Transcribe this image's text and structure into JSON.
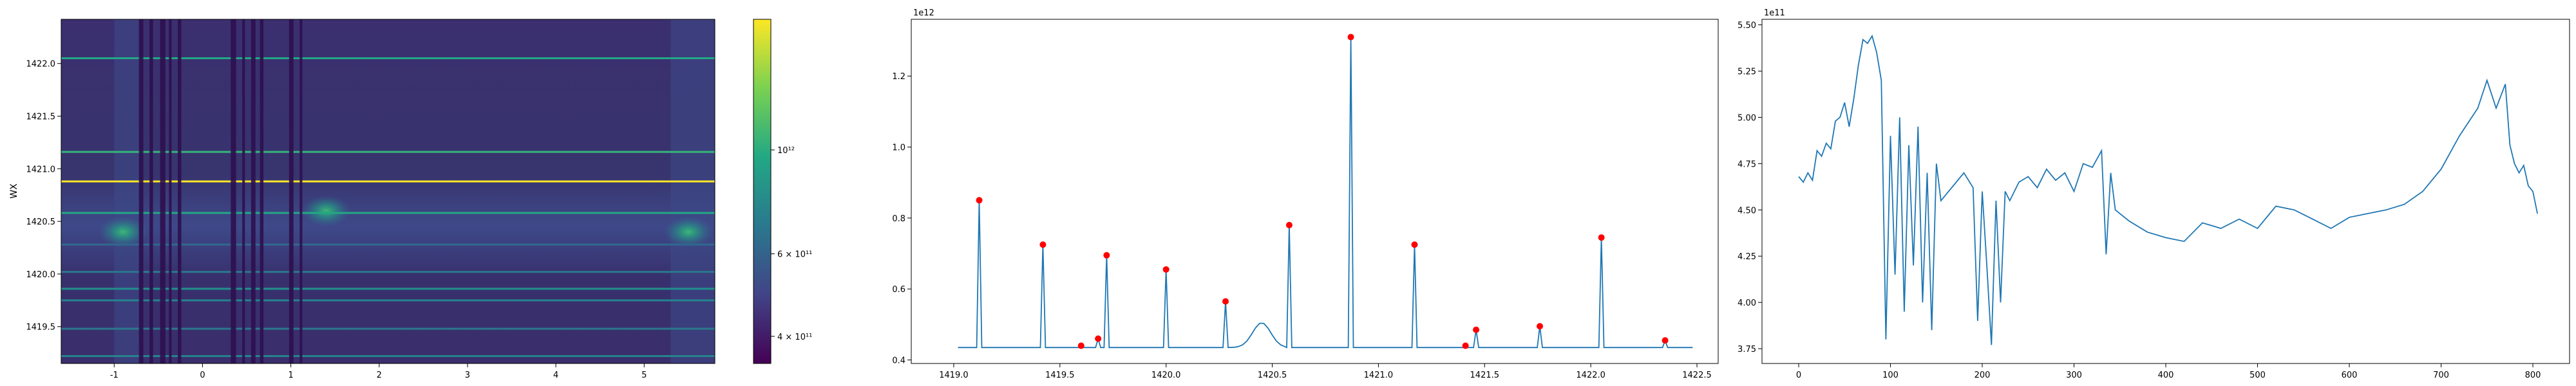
{
  "chart_data": [
    {
      "type": "heatmap",
      "xlim": [
        -1.6,
        5.8
      ],
      "ylim": [
        1419.15,
        1422.42
      ],
      "ylabel": "WX",
      "xticks": [
        -1,
        0,
        1,
        2,
        3,
        4,
        5
      ],
      "yticks": [
        1419.5,
        1420.0,
        1420.5,
        1421.0,
        1421.5,
        1422.0
      ],
      "colorscale": "viridis",
      "colorbar": {
        "scale": "log",
        "ticks": [
          "4 × 10¹¹",
          "6 × 10¹¹",
          "10¹²"
        ],
        "tick_values": [
          400000000000.0,
          600000000000.0,
          1000000000000.0
        ],
        "range": [
          350000000000.0,
          1900000000000.0
        ]
      },
      "horizontal_lines": [
        {
          "y": 1419.22,
          "color": "#25838e"
        },
        {
          "y": 1419.48,
          "color": "#2a788e"
        },
        {
          "y": 1419.75,
          "color": "#25838e"
        },
        {
          "y": 1419.86,
          "color": "#21908d"
        },
        {
          "y": 1420.02,
          "color": "#2a788e"
        },
        {
          "y": 1420.28,
          "color": "#31688e"
        },
        {
          "y": 1420.58,
          "color": "#22a884"
        },
        {
          "y": 1420.88,
          "color": "#fde725"
        },
        {
          "y": 1421.16,
          "color": "#35b779"
        },
        {
          "y": 1422.05,
          "color": "#22a884"
        }
      ],
      "vertical_bands": [
        {
          "x": -0.72,
          "w": 0.05
        },
        {
          "x": -0.6,
          "w": 0.04
        },
        {
          "x": -0.48,
          "w": 0.06
        },
        {
          "x": -0.38,
          "w": 0.03
        },
        {
          "x": -0.28,
          "w": 0.04
        },
        {
          "x": 0.32,
          "w": 0.06
        },
        {
          "x": 0.45,
          "w": 0.03
        },
        {
          "x": 0.55,
          "w": 0.05
        },
        {
          "x": 0.65,
          "w": 0.04
        },
        {
          "x": 0.98,
          "w": 0.05
        },
        {
          "x": 1.1,
          "w": 0.03
        }
      ],
      "hotspots": [
        {
          "x": -0.9,
          "y": 1420.4,
          "label": "bright band"
        },
        {
          "x": 1.4,
          "y": 1420.6,
          "label": "bright band"
        },
        {
          "x": 5.5,
          "y": 1420.4,
          "label": "bright band"
        }
      ]
    },
    {
      "type": "line",
      "offset_label": "1e12",
      "xlim": [
        1418.8,
        1422.6
      ],
      "ylim": [
        0.39,
        1.36
      ],
      "xticks": [
        1419.0,
        1419.5,
        1420.0,
        1420.5,
        1421.0,
        1421.5,
        1422.0,
        1422.5
      ],
      "yticks": [
        0.4,
        0.6,
        0.8,
        1.0,
        1.2
      ],
      "line_color": "#1f77b4",
      "baseline": 0.435,
      "peaks": [
        {
          "x": 1419.12,
          "y": 0.85
        },
        {
          "x": 1419.42,
          "y": 0.725
        },
        {
          "x": 1419.6,
          "y": 0.44
        },
        {
          "x": 1419.68,
          "y": 0.46
        },
        {
          "x": 1419.72,
          "y": 0.695
        },
        {
          "x": 1420.0,
          "y": 0.655
        },
        {
          "x": 1420.28,
          "y": 0.565
        },
        {
          "x": 1420.58,
          "y": 0.78
        },
        {
          "x": 1420.87,
          "y": 1.31
        },
        {
          "x": 1421.17,
          "y": 0.725
        },
        {
          "x": 1421.41,
          "y": 0.44
        },
        {
          "x": 1421.46,
          "y": 0.485
        },
        {
          "x": 1421.76,
          "y": 0.495
        },
        {
          "x": 1422.05,
          "y": 0.745
        },
        {
          "x": 1422.35,
          "y": 0.455
        }
      ],
      "marker_color": "#ff0000"
    },
    {
      "type": "line",
      "offset_label": "1e11",
      "xlim": [
        -40,
        840
      ],
      "ylim": [
        3.67,
        5.53
      ],
      "xticks": [
        0,
        100,
        200,
        300,
        400,
        500,
        600,
        700,
        800
      ],
      "yticks": [
        3.75,
        4.0,
        4.25,
        4.5,
        4.75,
        5.0,
        5.25,
        5.5
      ],
      "line_color": "#1f77b4",
      "series": {
        "x": [
          0,
          5,
          10,
          15,
          20,
          25,
          30,
          35,
          40,
          45,
          50,
          55,
          60,
          65,
          70,
          75,
          80,
          85,
          90,
          95,
          100,
          105,
          110,
          115,
          120,
          125,
          130,
          135,
          140,
          145,
          150,
          155,
          160,
          170,
          180,
          190,
          195,
          200,
          205,
          210,
          215,
          220,
          225,
          230,
          240,
          250,
          260,
          270,
          280,
          290,
          300,
          310,
          320,
          330,
          335,
          340,
          345,
          360,
          380,
          400,
          420,
          440,
          460,
          480,
          500,
          520,
          540,
          560,
          580,
          600,
          620,
          640,
          660,
          680,
          700,
          720,
          740,
          750,
          760,
          770,
          775,
          780,
          785,
          790,
          795,
          800,
          805
        ],
        "y": [
          4.68,
          4.65,
          4.7,
          4.66,
          4.82,
          4.79,
          4.86,
          4.83,
          4.98,
          5.0,
          5.08,
          4.95,
          5.1,
          5.28,
          5.42,
          5.4,
          5.44,
          5.35,
          5.2,
          3.8,
          4.9,
          4.15,
          5.0,
          3.95,
          4.85,
          4.2,
          4.95,
          4.0,
          4.7,
          3.85,
          4.75,
          4.55,
          4.58,
          4.64,
          4.7,
          4.62,
          3.9,
          4.6,
          4.2,
          3.77,
          4.55,
          4.0,
          4.6,
          4.55,
          4.65,
          4.68,
          4.62,
          4.72,
          4.66,
          4.7,
          4.6,
          4.75,
          4.73,
          4.82,
          4.26,
          4.7,
          4.5,
          4.44,
          4.38,
          4.35,
          4.33,
          4.43,
          4.4,
          4.45,
          4.4,
          4.52,
          4.5,
          4.45,
          4.4,
          4.46,
          4.48,
          4.5,
          4.53,
          4.6,
          4.72,
          4.9,
          5.05,
          5.2,
          5.05,
          5.18,
          4.85,
          4.75,
          4.7,
          4.74,
          4.63,
          4.6,
          4.48
        ]
      }
    }
  ]
}
